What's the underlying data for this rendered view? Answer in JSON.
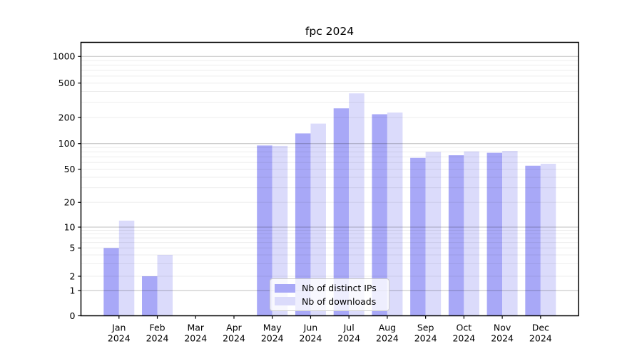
{
  "chart": {
    "chart_data": {
      "type": "bar",
      "title": "fpc 2024",
      "categories": [
        "Jan",
        "Feb",
        "Mar",
        "Apr",
        "May",
        "Jun",
        "Jul",
        "Aug",
        "Sep",
        "Oct",
        "Nov",
        "Dec"
      ],
      "category_year": "2024",
      "series": [
        {
          "name": "Nb of distinct IPs",
          "color": "#a8a8f7",
          "values": [
            5,
            2,
            0,
            0,
            95,
            131,
            255,
            218,
            68,
            73,
            78,
            55
          ]
        },
        {
          "name": "Nb of downloads",
          "color": "#dbdbfb",
          "values": [
            12,
            4,
            0,
            0,
            94,
            170,
            380,
            228,
            80,
            81,
            82,
            58
          ]
        }
      ],
      "y_ticks": [
        0,
        1,
        2,
        5,
        10,
        20,
        50,
        100,
        200,
        500,
        1000
      ],
      "ylim": [
        0,
        1450
      ],
      "yscale": "symlog",
      "xlabel": "",
      "ylabel": "",
      "grid": true,
      "legend_position": "lower-center-left",
      "colors": {
        "grid_minor": "rgba(0,0,0,0.07)",
        "grid_major": "rgba(0,0,0,0.25)",
        "spine": "#000000",
        "tick": "#000000",
        "text": "#000000",
        "background": "#ffffff"
      }
    }
  }
}
